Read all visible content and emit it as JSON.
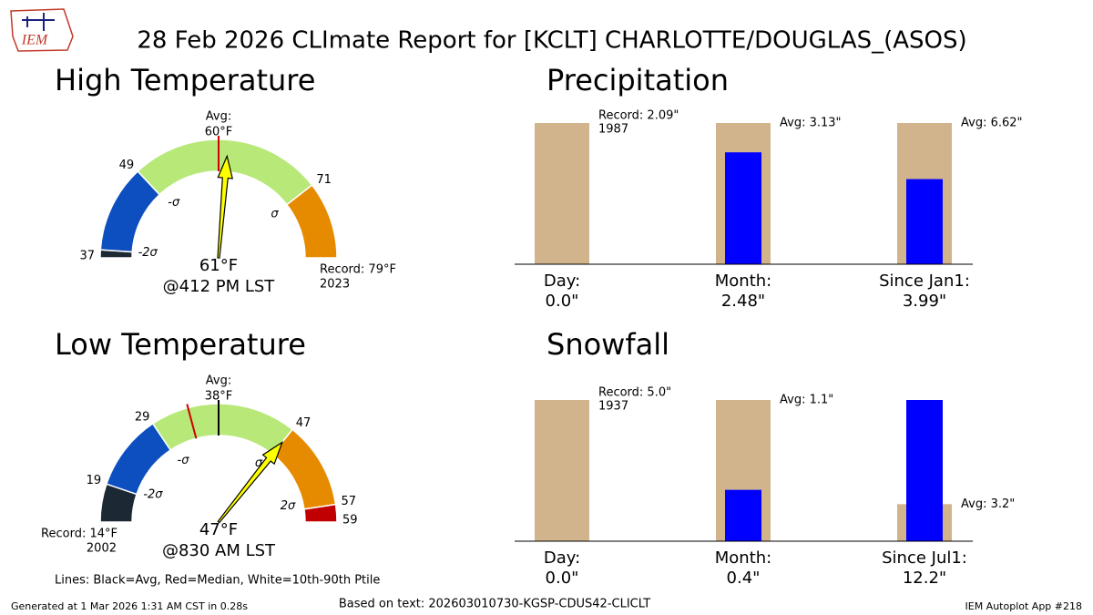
{
  "title": "28 Feb 2026 CLImate Report for [KCLT] CHARLOTTE/DOUGLAS_(ASOS)",
  "logo": "IEM",
  "avg_color": "#000000",
  "median_color": "#d00000",
  "needle_color": "#ffff00",
  "legend": "Lines: Black=Avg, Red=Median, White=10th-90th Ptile",
  "gauges": [
    {
      "title": "High Temperature",
      "avg": 60,
      "median": 60,
      "avg_label": "Avg:",
      "avg_value_label": "60°F",
      "value": 61,
      "value_label": "61°F",
      "time": "@412 PM LST",
      "ticks": [
        37,
        49,
        71
      ],
      "record": {
        "value": 79,
        "label": "Record: 79°F",
        "year": "2023"
      },
      "sigmas": [
        {
          "value": 38,
          "label": "-2σ"
        },
        {
          "value": 50,
          "label": "-σ"
        },
        {
          "value": 71,
          "label": "σ"
        }
      ],
      "bands": [
        {
          "from": 37,
          "to": 38,
          "color": "#1c2833"
        },
        {
          "from": 38,
          "to": 49,
          "color": "#0d4fbf"
        },
        {
          "from": 49,
          "to": 71,
          "color": "#b8e878"
        },
        {
          "from": 71,
          "to": 79,
          "color": "#e68a00"
        }
      ]
    },
    {
      "title": "Low Temperature",
      "avg": 38,
      "median": 34,
      "avg_label": "Avg:",
      "avg_value_label": "38°F",
      "value": 47,
      "value_label": "47°F",
      "time": "@830 AM LST",
      "ticks": [
        19,
        29,
        47,
        57,
        59
      ],
      "record": {
        "value": 14,
        "label": "Record: 14°F",
        "year": "2002"
      },
      "sigmas": [
        {
          "value": 20,
          "label": "-2σ"
        },
        {
          "value": 30,
          "label": "-σ"
        },
        {
          "value": 46,
          "label": "σ"
        },
        {
          "value": 56,
          "label": "2σ"
        }
      ],
      "bands": [
        {
          "from": 14,
          "to": 19,
          "color": "#1c2833"
        },
        {
          "from": 19,
          "to": 29,
          "color": "#0d4fbf"
        },
        {
          "from": 29,
          "to": 47,
          "color": "#b8e878"
        },
        {
          "from": 47,
          "to": 57,
          "color": "#e68a00"
        },
        {
          "from": 57,
          "to": 59,
          "color": "#c00000"
        }
      ]
    }
  ],
  "panels": [
    {
      "title": "Precipitation",
      "ref_color": "#d2b48c",
      "value_color": "#0000ff",
      "groups": [
        {
          "label": "Day:",
          "value": 0.0,
          "value_label": "0.0\"",
          "ref": 2.09,
          "ref_label": "Record: 2.09\"",
          "ref_year": "1987"
        },
        {
          "label": "Month:",
          "value": 2.48,
          "value_label": "2.48\"",
          "ref": 3.13,
          "ref_label": "Avg: 3.13\""
        },
        {
          "label": "Since Jan1:",
          "value": 3.99,
          "value_label": "3.99\"",
          "ref": 6.62,
          "ref_label": "Avg: 6.62\""
        }
      ]
    },
    {
      "title": "Snowfall",
      "ref_color": "#d2b48c",
      "value_color": "#0000ff",
      "groups": [
        {
          "label": "Day:",
          "value": 0.0,
          "value_label": "0.0\"",
          "ref": 5.0,
          "ref_label": "Record: 5.0\"",
          "ref_year": "1937"
        },
        {
          "label": "Month:",
          "value": 0.4,
          "value_label": "0.4\"",
          "ref": 1.1,
          "ref_label": "Avg: 1.1\""
        },
        {
          "label": "Since Jul1:",
          "value": 12.2,
          "value_label": "12.2\"",
          "ref": 3.2,
          "ref_label": "Avg: 3.2\""
        }
      ]
    }
  ],
  "footer": {
    "left": "Generated at 1 Mar 2026 1:31 AM CST in 0.28s",
    "center": "Based on text: 202603010730-KGSP-CDUS42-CLICLT",
    "right": "IEM Autoplot App #218"
  }
}
